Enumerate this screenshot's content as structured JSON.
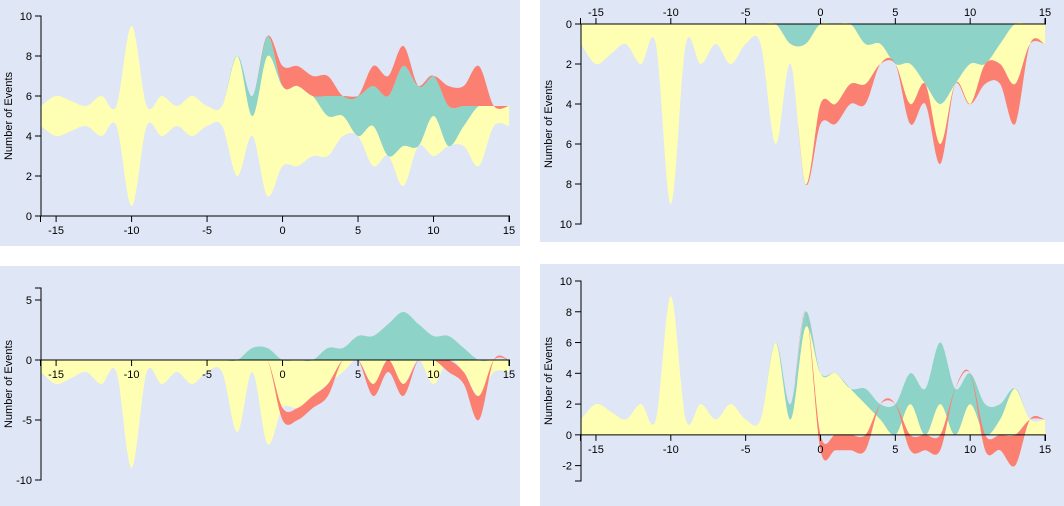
{
  "theme": {
    "panel_bg": "#dfe6f5",
    "colors": {
      "yellow": "#ffffb3",
      "teal": "#8dd3c7",
      "red": "#fb8072"
    }
  },
  "chart_data": [
    {
      "type": "area",
      "variant": "streamgraph (silhouette, centered at 5)",
      "ylabel": "Number of Events",
      "xlim": [
        -16,
        15
      ],
      "ylim": [
        0,
        10
      ],
      "xticks": [
        -15,
        -10,
        -5,
        0,
        5,
        10,
        15
      ],
      "yticks": [
        0,
        2,
        4,
        6,
        8,
        10
      ],
      "x_axis": "bottom",
      "y_reversed": false,
      "grid": false,
      "x": [
        -16,
        -15,
        -14,
        -13,
        -12,
        -11,
        -10,
        -9,
        -8,
        -7,
        -6,
        -5,
        -4,
        -3,
        -2,
        -1,
        0,
        1,
        2,
        3,
        4,
        5,
        6,
        7,
        8,
        9,
        10,
        11,
        12,
        13,
        14,
        15
      ],
      "series": [
        {
          "color": "yellow",
          "values": [
            1,
            2,
            1.5,
            1,
            2,
            1,
            9,
            1,
            2,
            1,
            2,
            1,
            1,
            6,
            1,
            7,
            4,
            4,
            3,
            2,
            1,
            0,
            2,
            0,
            2,
            0,
            2,
            0,
            1,
            3,
            1,
            1
          ]
        },
        {
          "color": "teal",
          "values": [
            0,
            0,
            0,
            0,
            0,
            0,
            0,
            0,
            0,
            0,
            0,
            0,
            0,
            0,
            1,
            1,
            0,
            0,
            0,
            1,
            1,
            2,
            2,
            3,
            4,
            3,
            2,
            2,
            1,
            0,
            0,
            0
          ]
        },
        {
          "color": "red",
          "values": [
            0,
            0,
            0,
            0,
            0,
            0,
            0,
            0,
            0,
            0,
            0,
            0,
            0,
            0,
            0,
            0,
            1,
            1,
            1,
            1,
            0,
            0,
            1,
            1,
            1,
            0,
            0,
            1,
            1,
            2,
            0,
            0
          ]
        }
      ]
    },
    {
      "type": "area",
      "variant": "stacked, downward from top",
      "ylabel": "Number of Events",
      "xlim": [
        -16,
        15
      ],
      "ylim": [
        0,
        10
      ],
      "xticks": [
        -15,
        -10,
        -5,
        0,
        5,
        10,
        15
      ],
      "yticks": [
        0,
        2,
        4,
        6,
        8,
        10
      ],
      "x_axis": "top",
      "y_reversed": true,
      "grid": false,
      "x": [
        -16,
        -15,
        -14,
        -13,
        -12,
        -11,
        -10,
        -9,
        -8,
        -7,
        -6,
        -5,
        -4,
        -3,
        -2,
        -1,
        0,
        1,
        2,
        3,
        4,
        5,
        6,
        7,
        8,
        9,
        10,
        11,
        12,
        13,
        14,
        15
      ],
      "series": [
        {
          "color": "teal",
          "values": [
            0,
            0,
            0,
            0,
            0,
            0,
            0,
            0,
            0,
            0,
            0,
            0,
            0,
            0,
            1,
            1,
            0,
            0,
            0,
            1,
            1,
            2,
            2,
            3,
            4,
            3,
            2,
            2,
            1,
            0,
            0,
            0
          ]
        },
        {
          "color": "yellow",
          "values": [
            1,
            2,
            1.5,
            1,
            2,
            1,
            9,
            1,
            2,
            1,
            2,
            1,
            1,
            6,
            1,
            7,
            4,
            4,
            3,
            2,
            1,
            0,
            2,
            0,
            2,
            0,
            2,
            0,
            1,
            3,
            1,
            1
          ]
        },
        {
          "color": "red",
          "values": [
            0,
            0,
            0,
            0,
            0,
            0,
            0,
            0,
            0,
            0,
            0,
            0,
            0,
            0,
            0,
            0,
            1,
            1,
            1,
            1,
            0,
            0,
            1,
            1,
            1,
            0,
            0,
            1,
            1,
            2,
            0,
            0
          ]
        }
      ]
    },
    {
      "type": "area",
      "variant": "diverging (positive up, negative down)",
      "ylabel": "Number of Events",
      "xlim": [
        -16,
        15
      ],
      "ylim": [
        -10,
        6
      ],
      "xticks": [
        -15,
        -10,
        -5,
        0,
        5,
        10,
        15
      ],
      "yticks": [
        -10,
        -5,
        0,
        5
      ],
      "x_axis": "zero",
      "y_reversed": false,
      "grid": false,
      "x": [
        -16,
        -15,
        -14,
        -13,
        -12,
        -11,
        -10,
        -9,
        -8,
        -7,
        -6,
        -5,
        -4,
        -3,
        -2,
        -1,
        0,
        1,
        2,
        3,
        4,
        5,
        6,
        7,
        8,
        9,
        10,
        11,
        12,
        13,
        14,
        15
      ],
      "series": [
        {
          "color": "yellow",
          "values": [
            -1,
            -2,
            -1.5,
            -1,
            -2,
            -1,
            -9,
            -1,
            -2,
            -1,
            -2,
            -1,
            -1,
            -6,
            -1,
            -7,
            -4,
            -4,
            -3,
            -2,
            -1,
            0,
            -2,
            0,
            -2,
            0,
            -2,
            0,
            -1,
            -3,
            -1,
            -1
          ]
        },
        {
          "color": "red",
          "values": [
            0,
            0,
            0,
            0,
            0,
            0,
            0,
            0,
            0,
            0,
            0,
            0,
            0,
            0,
            0,
            0,
            -1,
            -1,
            -1,
            -1,
            0,
            0,
            -1,
            -1,
            -1,
            0,
            0,
            -1,
            -1,
            -2,
            0,
            0
          ]
        },
        {
          "color": "teal",
          "values": [
            0,
            0,
            0,
            0,
            0,
            0,
            0,
            0,
            0,
            0,
            0,
            0,
            0,
            0,
            1,
            1,
            0,
            0,
            0,
            1,
            1,
            2,
            2,
            3,
            4,
            3,
            2,
            2,
            1,
            0,
            0,
            0
          ]
        }
      ]
    },
    {
      "type": "area",
      "variant": "stacked with negative",
      "ylabel": "Number of Events",
      "xlim": [
        -16,
        15
      ],
      "ylim": [
        -3,
        10
      ],
      "xticks": [
        -15,
        -10,
        -5,
        0,
        5,
        10,
        15
      ],
      "yticks": [
        -2,
        0,
        2,
        4,
        6,
        8,
        10
      ],
      "x_axis": "zero",
      "y_reversed": false,
      "grid": false,
      "x": [
        -16,
        -15,
        -14,
        -13,
        -12,
        -11,
        -10,
        -9,
        -8,
        -7,
        -6,
        -5,
        -4,
        -3,
        -2,
        -1,
        0,
        1,
        2,
        3,
        4,
        5,
        6,
        7,
        8,
        9,
        10,
        11,
        12,
        13,
        14,
        15
      ],
      "series": [
        {
          "color": "yellow",
          "values": [
            1,
            2,
            1.5,
            1,
            2,
            1,
            9,
            1,
            2,
            1,
            2,
            1,
            1,
            6,
            1,
            7,
            4,
            4,
            3,
            2,
            1,
            0,
            2,
            0,
            2,
            0,
            2,
            0,
            1,
            3,
            1,
            1
          ]
        },
        {
          "color": "teal",
          "values": [
            0,
            0,
            0,
            0,
            0,
            0,
            0,
            0,
            0,
            0,
            0,
            0,
            0,
            0,
            1,
            1,
            0,
            0,
            0,
            1,
            1,
            2,
            2,
            3,
            4,
            3,
            2,
            2,
            1,
            0,
            0,
            0
          ]
        },
        {
          "color": "red",
          "values": [
            0,
            0,
            0,
            0,
            0,
            0,
            0,
            0,
            0,
            0,
            0,
            0,
            0,
            0,
            0,
            0,
            -1,
            -1,
            -1,
            -1,
            0,
            0,
            -1,
            -1,
            -1,
            0,
            0,
            -1,
            -1,
            -2,
            0,
            0
          ]
        }
      ]
    }
  ]
}
